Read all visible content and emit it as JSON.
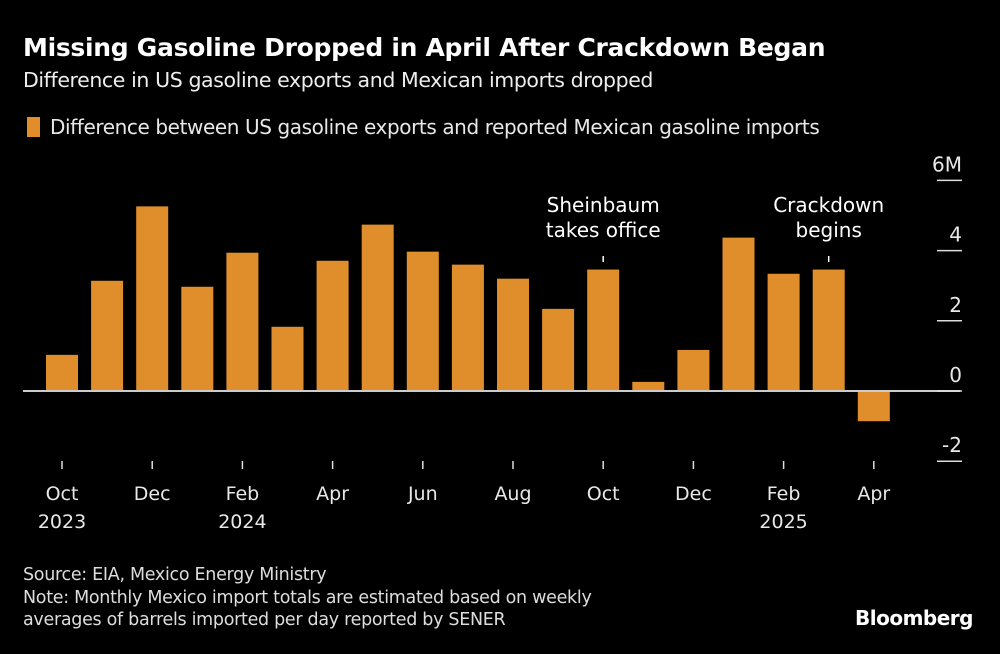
{
  "header": {
    "title": "Missing Gasoline Dropped in April After Crackdown Began",
    "subtitle": "Difference in US gasoline exports and Mexican imports dropped"
  },
  "legend": {
    "label": "Difference between US gasoline exports and reported Mexican gasoline imports",
    "color": "#e08e2b"
  },
  "footer": {
    "source": "Source: EIA, Mexico Energy Ministry",
    "note_line1": "Note: Monthly Mexico import totals are estimated based on weekly",
    "note_line2": "averages of barrels imported per day reported by SENER",
    "brand": "Bloomberg"
  },
  "chart_data": {
    "type": "bar",
    "title": "Missing Gasoline Dropped in April After Crackdown Began",
    "subtitle": "Difference in US gasoline exports and Mexican imports dropped",
    "xlabel": "",
    "ylabel": "",
    "legend": [
      "Difference between US gasoline exports and reported Mexican gasoline imports"
    ],
    "legend_position": "top-left",
    "categories": [
      "Oct 2023",
      "Nov 2023",
      "Dec 2023",
      "Jan 2024",
      "Feb 2024",
      "Mar 2024",
      "Apr 2024",
      "May 2024",
      "Jun 2024",
      "Jul 2024",
      "Aug 2024",
      "Sep 2024",
      "Oct 2024",
      "Nov 2024",
      "Dec 2024",
      "Jan 2025",
      "Feb 2025",
      "Mar 2025",
      "Apr 2025"
    ],
    "values": [
      1.03,
      3.14,
      5.26,
      2.97,
      3.94,
      1.83,
      3.71,
      4.74,
      3.97,
      3.6,
      3.2,
      2.34,
      3.46,
      0.26,
      1.17,
      4.37,
      3.34,
      3.46,
      -0.86
    ],
    "units": "barrels (millions)",
    "ylim": [
      -2,
      6
    ],
    "yticks": [
      {
        "value": 6,
        "label": "6M"
      },
      {
        "value": 4,
        "label": "4"
      },
      {
        "value": 2,
        "label": "2"
      },
      {
        "value": 0,
        "label": "0"
      },
      {
        "value": -2,
        "label": "-2"
      }
    ],
    "xticks": [
      {
        "index": 0,
        "month": "Oct",
        "year": "2023"
      },
      {
        "index": 2,
        "month": "Dec",
        "year": ""
      },
      {
        "index": 4,
        "month": "Feb",
        "year": "2024"
      },
      {
        "index": 6,
        "month": "Apr",
        "year": ""
      },
      {
        "index": 8,
        "month": "Jun",
        "year": ""
      },
      {
        "index": 10,
        "month": "Aug",
        "year": ""
      },
      {
        "index": 12,
        "month": "Oct",
        "year": ""
      },
      {
        "index": 14,
        "month": "Dec",
        "year": ""
      },
      {
        "index": 16,
        "month": "Feb",
        "year": "2025"
      },
      {
        "index": 18,
        "month": "Apr",
        "year": ""
      }
    ],
    "annotations": [
      {
        "index": 12,
        "lines": [
          "Sheinbaum",
          "takes office"
        ]
      },
      {
        "index": 17,
        "lines": [
          "Crackdown",
          "begins"
        ]
      }
    ],
    "grid": false,
    "y_axis_side": "right"
  }
}
